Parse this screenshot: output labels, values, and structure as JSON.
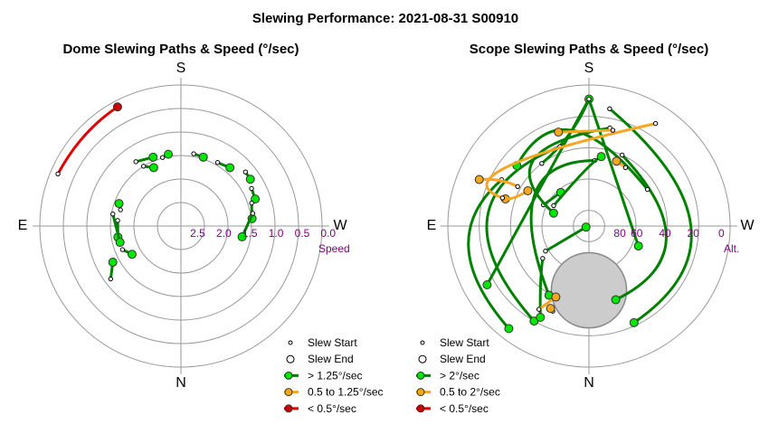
{
  "title": "Slewing Performance: 2021-08-31 S00910",
  "colors": {
    "fast": "#008000",
    "fast_marker": "#00e600",
    "medium": "#f5a623",
    "medium_marker": "#f5a623",
    "slow": "#e00000",
    "slow_marker": "#cc0000",
    "grid": "#999999",
    "tick_text": "#800080",
    "blocked": "#cccccc"
  },
  "chart_data": [
    {
      "type": "polar-path",
      "title": "Dome Slewing Paths & Speed (°/sec)",
      "cardinals": {
        "top": "S",
        "bottom": "N",
        "left": "E",
        "right": "W"
      },
      "radial_axis_label": "Speed",
      "radial_ticks": [
        "2.5",
        "2.0",
        "1.5",
        "1.0",
        "0.5",
        "0.0"
      ],
      "legend": [
        {
          "symbol": "start",
          "label": "Slew Start"
        },
        {
          "symbol": "end",
          "label": "Slew End"
        },
        {
          "symbol": "fast",
          "label": "> 1.25°/sec"
        },
        {
          "symbol": "medium",
          "label": "0.5 to 1.25°/sec"
        },
        {
          "symbol": "slow",
          "label": "< 0.5°/sec"
        }
      ],
      "paths": [
        {
          "speed": "slow",
          "start": [
            -113,
            2.84
          ],
          "end": [
            -152,
            2.87
          ],
          "mid": [
            -133,
            2.81
          ]
        },
        {
          "speed": "fast",
          "start": [
            -53,
            1.87
          ],
          "end": [
            -62,
            1.64
          ]
        },
        {
          "speed": "fast",
          "start": [
            -145,
            1.67
          ],
          "end": [
            -158,
            1.58
          ]
        },
        {
          "speed": "fast",
          "start": [
            -148,
            1.5
          ],
          "end": [
            -155,
            1.37
          ]
        },
        {
          "speed": "fast",
          "start": [
            -165,
            1.51
          ],
          "end": [
            -170,
            1.55
          ]
        },
        {
          "speed": "fast",
          "start": [
            170,
            1.56
          ],
          "end": [
            162,
            1.54
          ]
        },
        {
          "speed": "fast",
          "start": [
            150,
            1.56
          ],
          "end": [
            140,
            1.62
          ]
        },
        {
          "speed": "fast",
          "start": [
            130,
            1.79
          ],
          "end": [
            124,
            1.78
          ]
        },
        {
          "speed": "fast",
          "start": [
            118,
            1.7
          ],
          "end": [
            110,
            1.68
          ]
        },
        {
          "speed": "fast",
          "start": [
            108,
            1.58
          ],
          "end": [
            96,
            1.52
          ]
        },
        {
          "speed": "fast",
          "start": [
            100,
            1.55
          ],
          "end": [
            80,
            1.32
          ]
        },
        {
          "speed": "fast",
          "start": [
            -95,
            1.35
          ],
          "end": [
            -80,
            1.36
          ]
        },
        {
          "speed": "fast",
          "start": [
            -105,
            1.33
          ],
          "end": [
            -110,
            1.4
          ]
        },
        {
          "speed": "fast",
          "start": [
            -100,
            1.47
          ],
          "end": [
            -75,
            1.34
          ]
        },
        {
          "speed": "fast",
          "start": [
            -68,
            1.34
          ],
          "end": [
            -60,
            1.2
          ]
        }
      ]
    },
    {
      "type": "polar-path",
      "title": "Scope Slewing Paths & Speed (°/sec)",
      "cardinals": {
        "top": "S",
        "bottom": "N",
        "left": "E",
        "right": "W"
      },
      "radial_axis_label": "Alt.",
      "radial_ticks": [
        "80",
        "60",
        "40",
        "20",
        "0"
      ],
      "legend": [
        {
          "symbol": "start",
          "label": "Slew Start"
        },
        {
          "symbol": "end",
          "label": "Slew End"
        },
        {
          "symbol": "fast",
          "label": "> 2°/sec"
        },
        {
          "symbol": "medium",
          "label": "0.5 to 2°/sec"
        },
        {
          "symbol": "slow",
          "label": "< 0.5°/sec"
        }
      ],
      "blocked_region": {
        "azimuth": 0,
        "altitude_center": 49,
        "altitude_radius": 24
      },
      "paths": [
        {
          "speed": "fast",
          "start": [
            -143,
            40
          ],
          "end": [
            180,
            9
          ],
          "mid": [
            -168,
            30
          ]
        },
        {
          "speed": "fast",
          "start": [
            180,
            9
          ],
          "end": [
            68,
            56
          ]
        },
        {
          "speed": "fast",
          "start": [
            180,
            9
          ],
          "end": [
            -60,
            15
          ]
        },
        {
          "speed": "fast",
          "start": [
            -118,
            27
          ],
          "end": [
            -38,
            7
          ],
          "mid": [
            -80,
            12
          ]
        },
        {
          "speed": "fast",
          "start": [
            -160,
            36
          ],
          "end": [
            -30,
            20
          ],
          "mid": [
            -95,
            25
          ]
        },
        {
          "speed": "fast",
          "start": [
            170,
            14
          ],
          "end": [
            25,
            22
          ],
          "mid": [
            90,
            25
          ]
        },
        {
          "speed": "fast",
          "start": [
            155,
            40
          ],
          "end": [
            20,
            40
          ],
          "mid": [
            80,
            40
          ]
        },
        {
          "speed": "fast",
          "start": [
            175,
            48
          ],
          "end": [
            -30,
            39
          ],
          "mid": [
            -120,
            50
          ]
        },
        {
          "speed": "fast",
          "start": [
            -115,
            58
          ],
          "end": [
            -140,
            62
          ]
        },
        {
          "speed": "fast",
          "start": [
            -120,
            64
          ],
          "end": [
            170,
            45
          ],
          "mid": [
            -175,
            55
          ]
        },
        {
          "speed": "fast",
          "start": [
            168,
            26
          ],
          "end": [
            -110,
            66
          ],
          "mid": [
            -140,
            35
          ]
        },
        {
          "speed": "fast",
          "start": [
            -60,
            58
          ],
          "end": [
            -70,
            88
          ]
        },
        {
          "speed": "fast",
          "start": [
            122,
            46
          ],
          "end": [
            -130,
            30
          ],
          "mid": [
            -170,
            28
          ]
        },
        {
          "speed": "fast",
          "start": [
            -55,
            54
          ],
          "end": [
            -28,
            24
          ],
          "mid": [
            -40,
            42
          ]
        },
        {
          "speed": "medium",
          "start": [
            147,
            12
          ],
          "end": [
            -108,
            34
          ],
          "mid": [
            -125,
            25
          ]
        },
        {
          "speed": "medium",
          "start": [
            166,
            27
          ],
          "end": [
            -162,
            27
          ]
        },
        {
          "speed": "medium",
          "start": [
            -119,
            38
          ],
          "end": [
            -113,
            14
          ],
          "mid": [
            -117,
            26
          ]
        },
        {
          "speed": "medium",
          "start": [
            148,
            46
          ],
          "end": [
            157,
            45
          ]
        },
        {
          "speed": "medium",
          "start": [
            -108,
            32
          ],
          "end": [
            -120,
            45
          ],
          "mid": [
            -110,
            38
          ]
        },
        {
          "speed": "medium",
          "start": [
            -31,
            28
          ],
          "end": [
            -25,
            40
          ]
        },
        {
          "speed": "medium",
          "start": [
            -23,
            31
          ],
          "end": [
            -25,
            32
          ]
        }
      ]
    }
  ]
}
